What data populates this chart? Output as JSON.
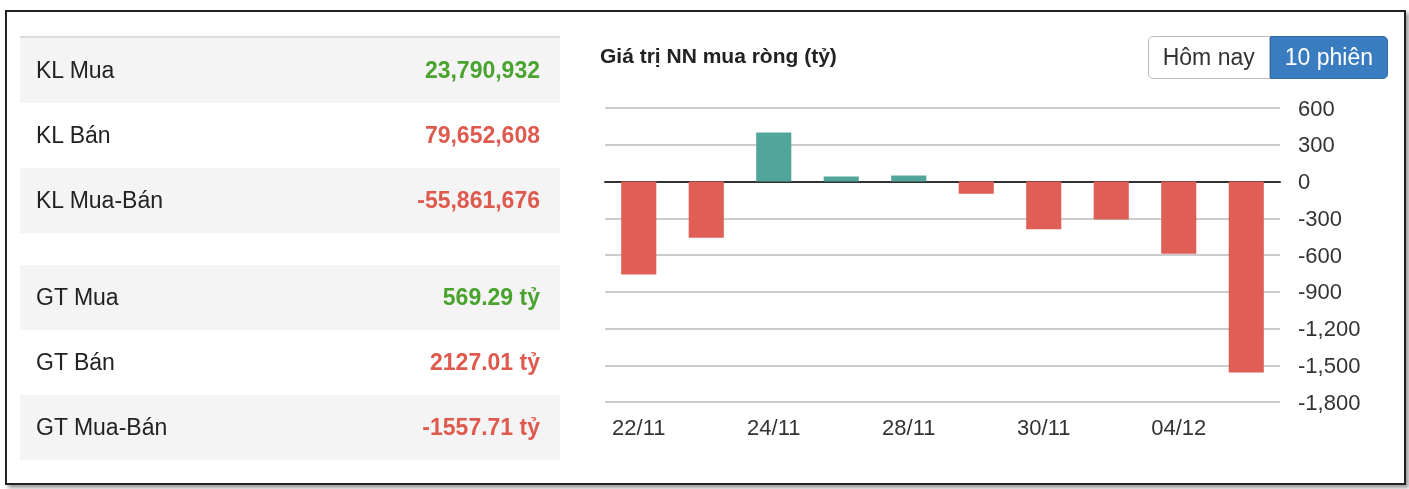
{
  "chart_data": [
    {
      "type": "other",
      "categories": [
        "KL Mua",
        "KL Bán",
        "KL Mua-Bán",
        null,
        "GT Mua",
        "GT Bán",
        "GT Mua-Bán"
      ],
      "value_labels": [
        "23,790,932",
        "79,652,608",
        "-55,861,676",
        null,
        "569.29 tỷ",
        "2127.01 tỷ",
        "-1557.71 tỷ"
      ]
    },
    {
      "type": "bar",
      "title": "Giá trị NN mua ròng (tỷ)",
      "annotations": [
        "Hôm nay",
        "10 phiên"
      ],
      "categories": [
        "22/11",
        null,
        "24/11",
        null,
        "28/11",
        null,
        "30/11",
        null,
        "04/12",
        null
      ],
      "values": [
        -760,
        -460,
        400,
        40,
        50,
        -100,
        -390,
        -310,
        -590,
        -1560
      ],
      "colors": [
        "#df5e56",
        "#df5e56",
        "#52a59a",
        "#52a59a",
        "#52a59a",
        "#df5e56",
        "#df5e56",
        "#df5e56",
        "#df5e56",
        "#df5e56"
      ],
      "ylim": [
        -1800,
        600
      ],
      "yticks": [
        {
          "value": -1800,
          "label": "-1,800"
        },
        {
          "value": -1500,
          "label": "-1,500"
        },
        {
          "value": -1200,
          "label": "-1,200"
        },
        -900,
        -600,
        -300,
        0,
        300,
        600
      ],
      "grid": "y"
    }
  ]
}
